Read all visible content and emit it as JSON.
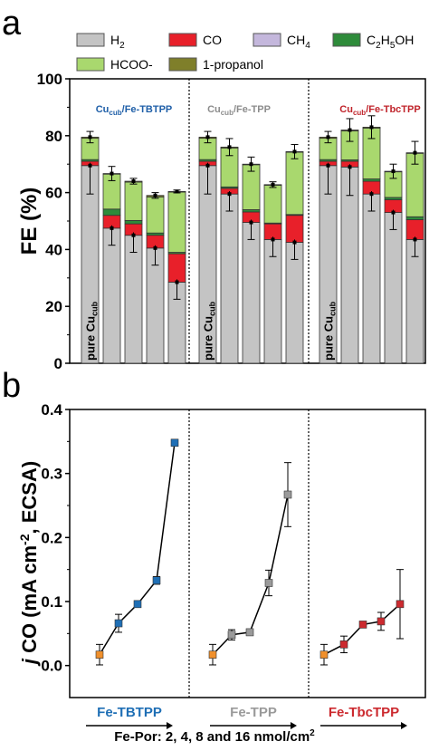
{
  "panel_labels": {
    "a": "a",
    "b": "b"
  },
  "chart_data": [
    {
      "type": "bar",
      "stacked": true,
      "ylabel": "FE (%)",
      "ylim": [
        0,
        100
      ],
      "yticks": [
        0,
        20,
        40,
        60,
        80,
        100
      ],
      "legend_placement": "top",
      "legend": [
        {
          "name": "H",
          "sub": "2",
          "post": "",
          "color": "#c4c4c4"
        },
        {
          "name": "CO",
          "sub": "",
          "post": "",
          "color": "#e8202a"
        },
        {
          "name": "CH",
          "sub": "4",
          "post": "",
          "color": "#c4b7dc"
        },
        {
          "name": "C",
          "sub": "2",
          "post": "H",
          "sub2": "5",
          "post2": "OH",
          "color": "#2e8b3a"
        },
        {
          "name": "HCOO-",
          "sub": "",
          "post": "",
          "color": "#a9d86e"
        },
        {
          "name": "1-propanol",
          "sub": "",
          "post": "",
          "color": "#7f7f2a"
        }
      ],
      "groups": [
        {
          "label": "Cu",
          "label_sub": "cub",
          "label_post": "/Fe-TBTPP",
          "label_color": "#1f5fa8",
          "baseline_label": "pure Cu",
          "baseline_label_sub": "cub",
          "bars": [
            {
              "H2": 69.5,
              "CO": 1.5,
              "C2H5OH": 0.6,
              "HCOO": 7.5,
              "propanol": 0.4,
              "err": 2
            },
            {
              "H2": 47.5,
              "CO": 4.5,
              "C2H5OH": 2.2,
              "HCOO": 12.3,
              "propanol": 0.2,
              "err": 2.5
            },
            {
              "H2": 45.0,
              "CO": 4.0,
              "C2H5OH": 1.2,
              "HCOO": 13.5,
              "propanol": 0.3,
              "err": 1
            },
            {
              "H2": 40.5,
              "CO": 4.5,
              "C2H5OH": 0.8,
              "HCOO": 12.7,
              "propanol": 0.5,
              "err": 1
            },
            {
              "H2": 28.5,
              "CO": 10.0,
              "C2H5OH": 0.5,
              "HCOO": 21.2,
              "propanol": 0.2,
              "err": 0.5
            }
          ]
        },
        {
          "label": "Cu",
          "label_sub": "cub",
          "label_post": "/Fe-TPP",
          "label_color": "#8c8c8c",
          "baseline_label": "pure Cu",
          "baseline_label_sub": "cub",
          "bars": [
            {
              "H2": 69.5,
              "CO": 1.5,
              "C2H5OH": 0.6,
              "HCOO": 7.5,
              "propanol": 0.4,
              "err": 2
            },
            {
              "H2": 59.5,
              "CO": 2.0,
              "C2H5OH": 0.5,
              "HCOO": 13.7,
              "propanol": 0.3,
              "err": 3
            },
            {
              "H2": 49.5,
              "CO": 3.7,
              "C2H5OH": 0.8,
              "HCOO": 15.8,
              "propanol": 0.2,
              "err": 2.5
            },
            {
              "H2": 43.5,
              "CO": 5.5,
              "C2H5OH": 0.3,
              "HCOO": 13.3,
              "propanol": 0.2,
              "err": 1
            },
            {
              "H2": 42.5,
              "CO": 9.5,
              "C2H5OH": 0.3,
              "HCOO": 21.9,
              "propanol": 0.2,
              "err": 2.5
            }
          ]
        },
        {
          "label": "Cu",
          "label_sub": "cub",
          "label_post": "/Fe-TbcTPP",
          "label_color": "#c0242b",
          "baseline_label": "pure Cu",
          "baseline_label_sub": "cub",
          "bars": [
            {
              "H2": 69.5,
              "CO": 1.5,
              "C2H5OH": 0.6,
              "HCOO": 7.5,
              "propanol": 0.4,
              "err": 2
            },
            {
              "H2": 69.0,
              "CO": 2.0,
              "C2H5OH": 0.5,
              "HCOO": 10.2,
              "propanol": 0.3,
              "err": 4
            },
            {
              "H2": 59.5,
              "CO": 4.5,
              "C2H5OH": 0.8,
              "HCOO": 17.9,
              "propanol": 0.3,
              "err": 4
            },
            {
              "H2": 53.0,
              "CO": 4.5,
              "C2H5OH": 0.8,
              "HCOO": 9.0,
              "propanol": 0.2,
              "err": 2.5
            },
            {
              "H2": 43.5,
              "CO": 7.0,
              "C2H5OH": 1.0,
              "HCOO": 22.3,
              "propanol": 0.2,
              "err": 4
            }
          ]
        }
      ]
    },
    {
      "type": "scatter",
      "ylabel_pre": "j",
      "ylabel_mid": " CO (mA cm",
      "ylabel_sup": "-2",
      "ylabel_post": ", ECSA)",
      "ylim": [
        -0.05,
        0.4
      ],
      "yticks": [
        "0.0",
        "0.1",
        "0.2",
        "0.3",
        "0.4"
      ],
      "ytick_values": [
        0,
        0.1,
        0.2,
        0.3,
        0.4
      ],
      "xlabel": "Fe-Por: 2, 4, 8 and 16 nmol/cm",
      "xlabel_sup": "2",
      "baseline_color": "#f0902c",
      "series": [
        {
          "name": "Fe-TBTPP",
          "color": "#1f6fb5",
          "values": [
            0.017,
            0.066,
            0.096,
            0.133,
            0.348
          ],
          "errors": [
            0.016,
            0.014,
            0.004,
            0.006,
            0.004
          ]
        },
        {
          "name": "Fe-TPP",
          "color": "#9a9a9a",
          "values": [
            0.017,
            0.048,
            0.052,
            0.129,
            0.267
          ],
          "errors": [
            0.016,
            0.008,
            0.003,
            0.02,
            0.05
          ]
        },
        {
          "name": "Fe-TbcTPP",
          "color": "#cc2a2f",
          "values": [
            0.017,
            0.033,
            0.064,
            0.069,
            0.096
          ],
          "errors": [
            0.016,
            0.013,
            0.003,
            0.014,
            0.054
          ]
        }
      ]
    }
  ]
}
